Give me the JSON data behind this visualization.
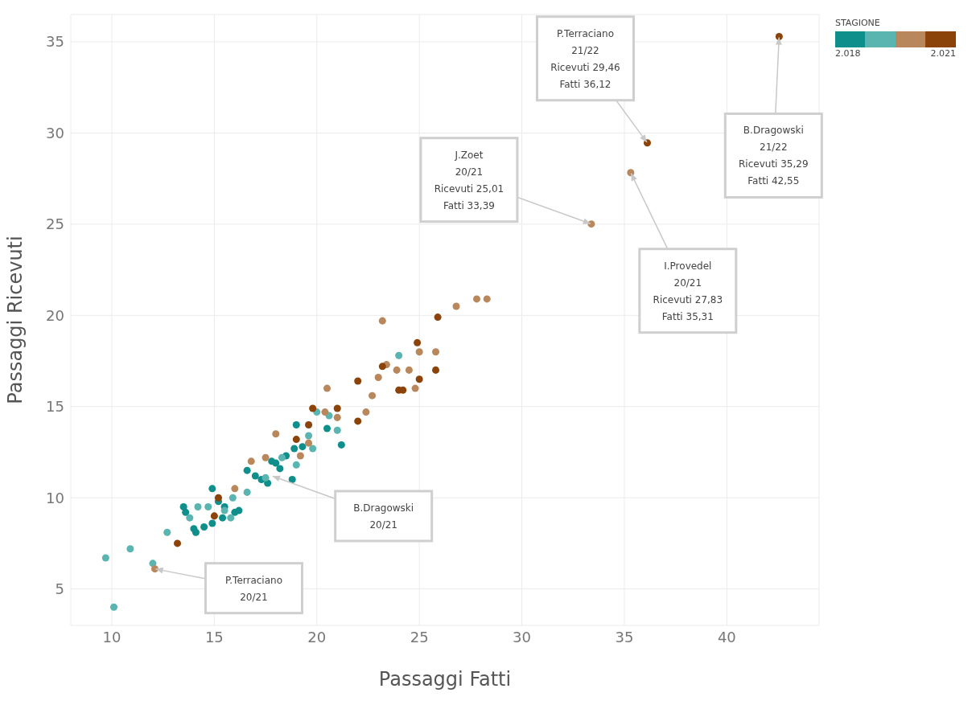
{
  "chart_data": {
    "type": "scatter",
    "xlabel": "Passaggi Fatti",
    "ylabel": "Passaggi Ricevuti",
    "clabel": "STAGIONE",
    "clim": [
      2018,
      2021
    ],
    "cticks": [
      {
        "value": 2018,
        "label": "2.018"
      },
      {
        "value": 2021,
        "label": "2.021"
      }
    ],
    "xlim": [
      8,
      44.5
    ],
    "ylim": [
      3,
      36.5
    ],
    "xticks": [
      10,
      15,
      20,
      25,
      30,
      35,
      40
    ],
    "yticks": [
      5,
      10,
      15,
      20,
      25,
      30,
      35
    ],
    "grid": true,
    "marker": "circle",
    "legend": false,
    "series": [
      {
        "color": "#0e8f8c",
        "x": [
          14.9,
          13.5,
          13.6,
          14,
          14.5,
          14.9,
          15.2,
          15.5,
          16,
          16.2,
          16.6,
          17,
          17.3,
          17.8,
          18,
          18.2,
          18.8,
          18.9,
          19.3,
          19,
          20.5,
          21.2,
          14.1,
          15.4,
          17.6,
          18.5
        ],
        "values": [
          10.5,
          9.5,
          9.2,
          8.3,
          8.4,
          8.6,
          9.8,
          9.5,
          9.2,
          9.3,
          11.5,
          11.2,
          11,
          12,
          11.9,
          11.6,
          11,
          12.7,
          12.8,
          14,
          13.8,
          12.9,
          8.1,
          8.9,
          10.8,
          12.3
        ]
      },
      {
        "color": "#5ab5b0",
        "x": [
          9.7,
          10.9,
          10.1,
          12,
          12.7,
          13.8,
          14.2,
          14.7,
          15.8,
          15.9,
          17.5,
          18.3,
          19,
          19.6,
          20,
          20.6,
          21,
          24,
          19.8,
          15.5,
          16.6
        ],
        "values": [
          6.7,
          7.2,
          4,
          6.4,
          8.1,
          8.9,
          9.5,
          9.5,
          8.9,
          10,
          11.1,
          12.2,
          11.8,
          13.4,
          14.7,
          14.5,
          13.7,
          17.8,
          12.7,
          9.3,
          10.3
        ]
      },
      {
        "color": "#b8875c",
        "x": [
          12.1,
          16,
          16.8,
          17.5,
          18,
          19.2,
          19.6,
          20.4,
          20.5,
          21,
          22.4,
          22.7,
          23,
          23.2,
          23.4,
          23.9,
          24.8,
          25,
          25.8,
          26.8,
          27.8,
          28.3,
          33.39,
          35.31,
          24.5
        ],
        "values": [
          6.1,
          10.5,
          12,
          12.2,
          13.5,
          12.3,
          13,
          14.7,
          16,
          14.4,
          14.7,
          15.6,
          16.6,
          19.7,
          17.3,
          17,
          16,
          18,
          18,
          20.5,
          20.9,
          20.9,
          25.01,
          27.83,
          17
        ]
      },
      {
        "color": "#8b4309",
        "x": [
          13.2,
          15,
          15.2,
          19,
          19.6,
          19.8,
          21,
          22,
          22,
          23.2,
          24,
          24.2,
          24.9,
          25,
          25.8,
          25.9,
          36.12,
          42.55
        ],
        "values": [
          7.5,
          9,
          10,
          13.2,
          14,
          14.9,
          14.9,
          14.2,
          16.4,
          17.2,
          15.9,
          15.9,
          18.5,
          16.5,
          17,
          19.9,
          29.46,
          35.29
        ]
      }
    ],
    "annotations": [
      {
        "text": "P.Terraciano\n21/22\nRicevuti 29,46\nFatti 36,12",
        "x": 36.12,
        "y": 29.46
      },
      {
        "text": "J.Zoet\n20/21\nRicevuti 25,01\nFatti 33,39",
        "x": 33.39,
        "y": 25.01
      },
      {
        "text": "I.Provedel\n20/21\nRicevuti 27,83\nFatti 35,31",
        "x": 35.31,
        "y": 27.83
      },
      {
        "text": "B.Dragowski\n21/22\nRicevuti 35,29\nFatti 42,55",
        "x": 42.55,
        "y": 35.29
      },
      {
        "text": "B.Dragowski\n20/21",
        "x": 17.8,
        "y": 11.2
      },
      {
        "text": "P.Terraciano\n20/21",
        "x": 12.1,
        "y": 6.1
      }
    ]
  }
}
